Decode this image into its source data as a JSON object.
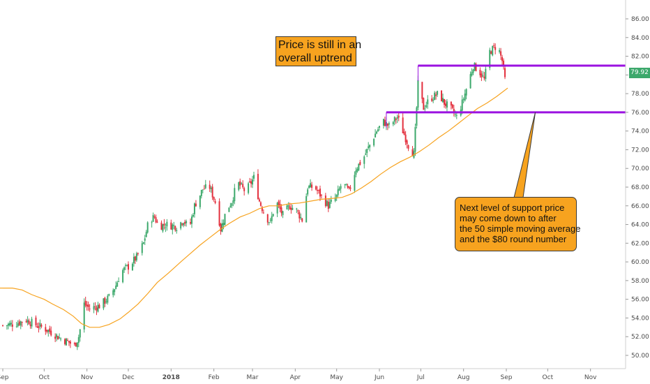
{
  "chart_data": {
    "type": "candlestick",
    "colors": {
      "up": "#3ca86b",
      "down": "#e3303e",
      "sma": "#f7a31f",
      "support_line": "#9b12e0",
      "callout_fill": "#f7a31f",
      "price_tag": "#3ca86b"
    },
    "x_ticks": [
      {
        "label": "Sep",
        "date": "2017-09-01"
      },
      {
        "label": "Oct",
        "date": "2017-10-01"
      },
      {
        "label": "Nov",
        "date": "2017-11-01"
      },
      {
        "label": "Dec",
        "date": "2017-12-01"
      },
      {
        "label": "2018",
        "date": "2018-01-01",
        "bold": true
      },
      {
        "label": "Feb",
        "date": "2018-02-01"
      },
      {
        "label": "Mar",
        "date": "2018-03-01"
      },
      {
        "label": "Apr",
        "date": "2018-04-01"
      },
      {
        "label": "May",
        "date": "2018-05-01"
      },
      {
        "label": "Jun",
        "date": "2018-06-01"
      },
      {
        "label": "Jul",
        "date": "2018-07-01"
      },
      {
        "label": "Aug",
        "date": "2018-08-01"
      },
      {
        "label": "Sep",
        "date": "2018-09-01"
      },
      {
        "label": "Oct",
        "date": "2018-10-01"
      },
      {
        "label": "Nov",
        "date": "2018-11-01"
      }
    ],
    "y_ticks": [
      "50.00",
      "52.00",
      "54.00",
      "56.00",
      "58.00",
      "60.00",
      "62.00",
      "64.00",
      "66.00",
      "68.00",
      "70.00",
      "72.00",
      "74.00",
      "76.00",
      "78.00",
      "80.00",
      "82.00",
      "84.00",
      "86.00"
    ],
    "ylim": [
      49.5,
      87.5
    ],
    "x_range": [
      "2017-09-01",
      "2018-11-30"
    ],
    "price_label": "79.92",
    "last_price": 79.92,
    "close_path": [
      [
        "2017-09-01",
        53.2
      ],
      [
        "2017-09-10",
        53.4
      ],
      [
        "2017-09-18",
        53.8
      ],
      [
        "2017-09-26",
        53.2
      ],
      [
        "2017-10-01",
        52.9
      ],
      [
        "2017-10-07",
        52.4
      ],
      [
        "2017-10-13",
        51.8
      ],
      [
        "2017-10-19",
        51.4
      ],
      [
        "2017-10-23",
        51.0
      ],
      [
        "2017-10-26",
        52.0
      ],
      [
        "2017-10-28",
        53.5
      ],
      [
        "2017-10-30",
        55.5
      ],
      [
        "2017-11-03",
        55.0
      ],
      [
        "2017-11-10",
        55.3
      ],
      [
        "2017-11-17",
        56.2
      ],
      [
        "2017-11-22",
        57.5
      ],
      [
        "2017-11-26",
        59.0
      ],
      [
        "2017-12-01",
        59.5
      ],
      [
        "2017-12-07",
        60.5
      ],
      [
        "2017-12-12",
        62.0
      ],
      [
        "2017-12-16",
        64.5
      ],
      [
        "2017-12-20",
        64.8
      ],
      [
        "2017-12-23",
        63.8
      ],
      [
        "2017-12-28",
        64.0
      ],
      [
        "2018-01-05",
        63.8
      ],
      [
        "2018-01-10",
        64.5
      ],
      [
        "2018-01-14",
        63.5
      ],
      [
        "2018-01-18",
        66.0
      ],
      [
        "2018-01-24",
        67.8
      ],
      [
        "2018-01-29",
        68.0
      ],
      [
        "2018-02-03",
        66.0
      ],
      [
        "2018-02-06",
        63.5
      ],
      [
        "2018-02-10",
        65.5
      ],
      [
        "2018-02-14",
        66.5
      ],
      [
        "2018-02-18",
        68.5
      ],
      [
        "2018-02-24",
        67.5
      ],
      [
        "2018-03-02",
        69.0
      ],
      [
        "2018-03-06",
        66.5
      ],
      [
        "2018-03-10",
        65.0
      ],
      [
        "2018-03-14",
        64.2
      ],
      [
        "2018-03-18",
        66.5
      ],
      [
        "2018-03-23",
        65.0
      ],
      [
        "2018-03-28",
        66.0
      ],
      [
        "2018-04-02",
        65.5
      ],
      [
        "2018-04-06",
        64.5
      ],
      [
        "2018-04-10",
        68.0
      ],
      [
        "2018-04-15",
        68.0
      ],
      [
        "2018-04-20",
        67.0
      ],
      [
        "2018-04-25",
        66.0
      ],
      [
        "2018-05-01",
        67.0
      ],
      [
        "2018-05-05",
        68.5
      ],
      [
        "2018-05-10",
        67.5
      ],
      [
        "2018-05-15",
        70.0
      ],
      [
        "2018-05-20",
        71.0
      ],
      [
        "2018-05-25",
        72.5
      ],
      [
        "2018-05-30",
        74.0
      ],
      [
        "2018-06-04",
        75.0
      ],
      [
        "2018-06-08",
        74.5
      ],
      [
        "2018-06-14",
        75.5
      ],
      [
        "2018-06-18",
        74.0
      ],
      [
        "2018-06-22",
        72.5
      ],
      [
        "2018-06-26",
        71.5
      ],
      [
        "2018-06-29",
        79.0
      ],
      [
        "2018-07-03",
        76.5
      ],
      [
        "2018-07-08",
        77.5
      ],
      [
        "2018-07-14",
        78.0
      ],
      [
        "2018-07-18",
        77.0
      ],
      [
        "2018-07-22",
        76.5
      ],
      [
        "2018-07-27",
        75.5
      ],
      [
        "2018-07-31",
        77.0
      ],
      [
        "2018-08-04",
        79.0
      ],
      [
        "2018-08-08",
        81.0
      ],
      [
        "2018-08-12",
        80.5
      ],
      [
        "2018-08-16",
        79.5
      ],
      [
        "2018-08-20",
        82.5
      ],
      [
        "2018-08-24",
        83.0
      ],
      [
        "2018-08-27",
        82.5
      ],
      [
        "2018-08-29",
        81.5
      ],
      [
        "2018-08-31",
        79.5
      ],
      [
        "2018-09-02",
        79.92
      ]
    ],
    "sma": {
      "points": [
        [
          "2017-09-01",
          57.2
        ],
        [
          "2017-09-08",
          57.2
        ],
        [
          "2017-09-15",
          57.0
        ],
        [
          "2017-09-22",
          56.5
        ],
        [
          "2017-10-01",
          56.0
        ],
        [
          "2017-10-07",
          55.5
        ],
        [
          "2017-10-15",
          54.9
        ],
        [
          "2017-10-22",
          54.2
        ],
        [
          "2017-10-28",
          53.4
        ],
        [
          "2017-11-03",
          53.0
        ],
        [
          "2017-11-10",
          53.0
        ],
        [
          "2017-11-17",
          53.3
        ],
        [
          "2017-11-25",
          53.9
        ],
        [
          "2017-12-01",
          54.6
        ],
        [
          "2017-12-08",
          55.5
        ],
        [
          "2017-12-15",
          56.6
        ],
        [
          "2017-12-22",
          57.8
        ],
        [
          "2017-12-30",
          58.8
        ],
        [
          "2018-01-08",
          60.0
        ],
        [
          "2018-01-15",
          60.9
        ],
        [
          "2018-01-22",
          61.8
        ],
        [
          "2018-01-29",
          62.6
        ],
        [
          "2018-02-05",
          63.4
        ],
        [
          "2018-02-12",
          64.1
        ],
        [
          "2018-02-20",
          64.8
        ],
        [
          "2018-02-27",
          65.2
        ],
        [
          "2018-03-06",
          65.7
        ],
        [
          "2018-03-13",
          66.0
        ],
        [
          "2018-03-20",
          66.0
        ],
        [
          "2018-03-27",
          66.2
        ],
        [
          "2018-04-04",
          66.3
        ],
        [
          "2018-04-12",
          66.5
        ],
        [
          "2018-04-20",
          66.7
        ],
        [
          "2018-04-28",
          66.8
        ],
        [
          "2018-05-05",
          66.9
        ],
        [
          "2018-05-12",
          67.3
        ],
        [
          "2018-05-19",
          67.9
        ],
        [
          "2018-05-26",
          68.6
        ],
        [
          "2018-06-02",
          69.4
        ],
        [
          "2018-06-09",
          70.1
        ],
        [
          "2018-06-16",
          70.7
        ],
        [
          "2018-06-23",
          71.2
        ],
        [
          "2018-06-30",
          71.8
        ],
        [
          "2018-07-07",
          72.5
        ],
        [
          "2018-07-14",
          73.3
        ],
        [
          "2018-07-21",
          74.0
        ],
        [
          "2018-07-28",
          74.8
        ],
        [
          "2018-08-04",
          75.6
        ],
        [
          "2018-08-11",
          76.4
        ],
        [
          "2018-08-18",
          77.0
        ],
        [
          "2018-08-25",
          77.7
        ],
        [
          "2018-09-02",
          78.6
        ]
      ]
    },
    "support_lines": [
      {
        "price": 81.0,
        "from": "2018-06-29",
        "to": "2018-11-30"
      },
      {
        "price": 76.0,
        "from": "2018-06-06",
        "to": "2018-11-30"
      }
    ],
    "annotations": [
      {
        "lines": [
          "Price is still in an",
          "overall uptrend"
        ]
      },
      {
        "lines": [
          "Next level of support price",
          "may come down to after",
          "the 50 simple moving average",
          "and the $80 round number"
        ],
        "arrow_to": {
          "date": "2018-09-22",
          "price": 76.0
        }
      }
    ],
    "grid": false
  }
}
